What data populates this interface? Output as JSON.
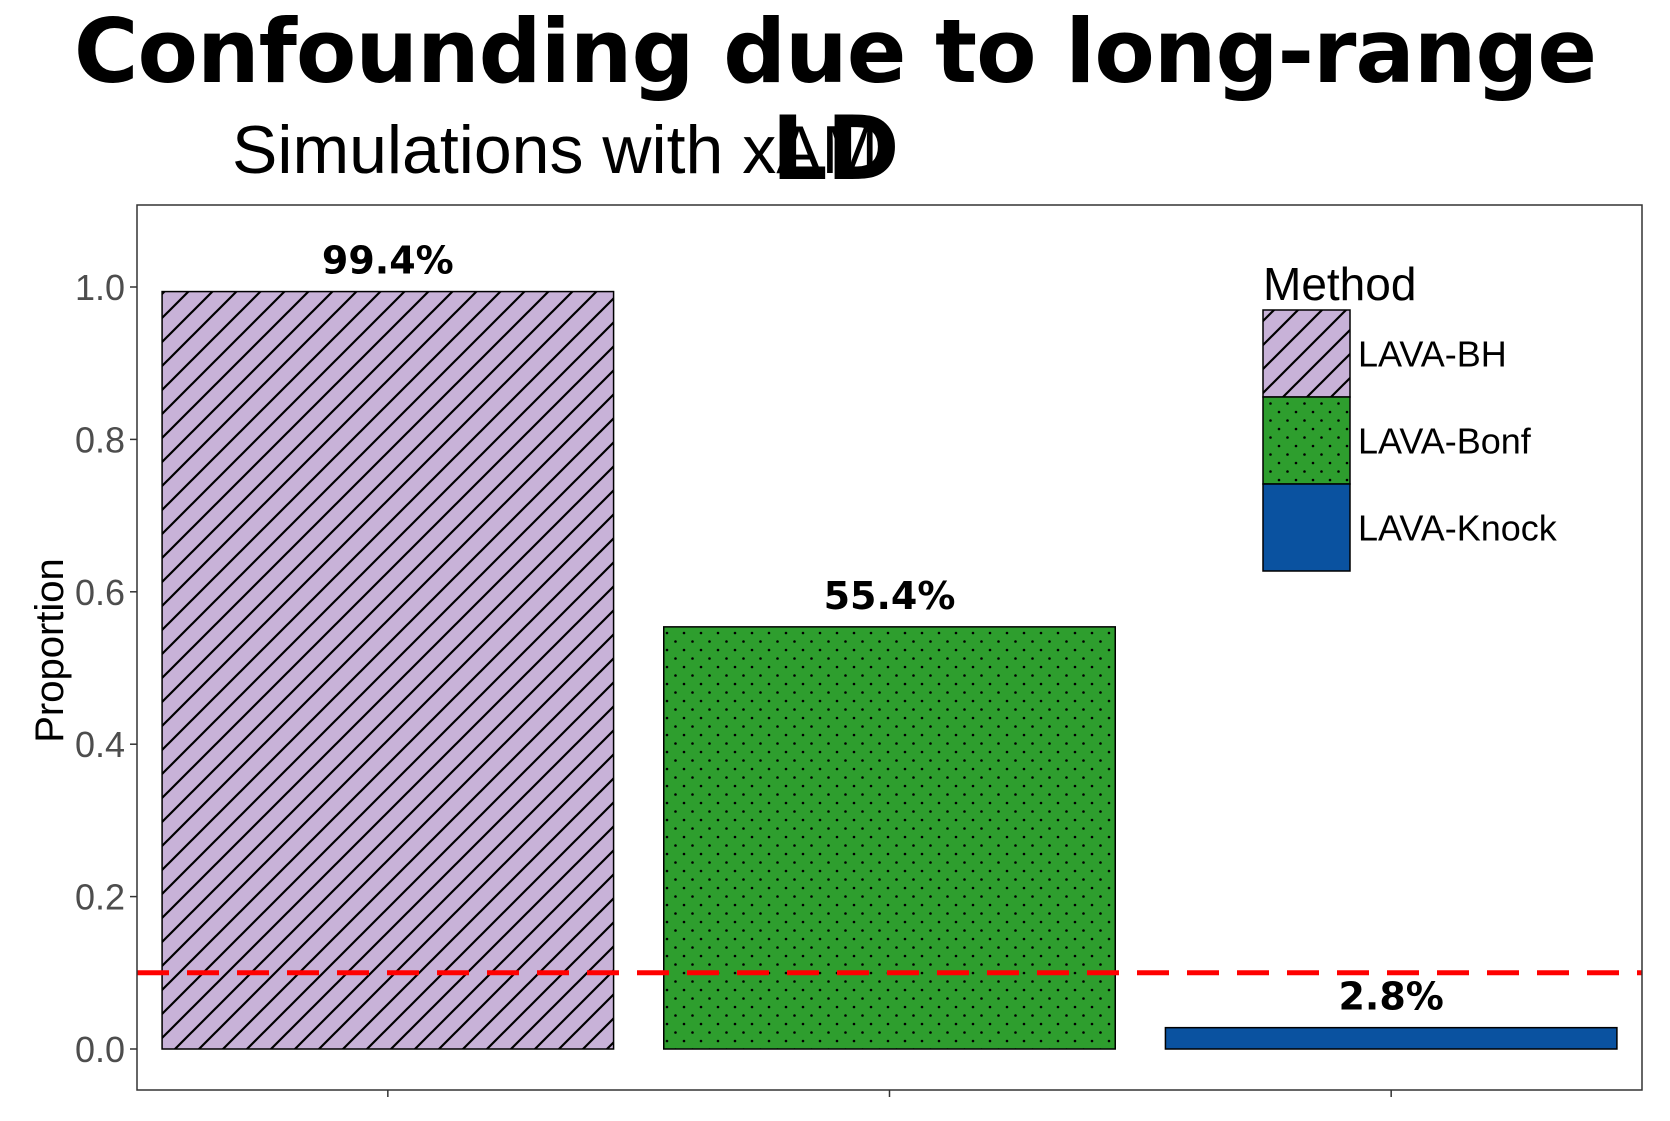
{
  "slide": {
    "title": "Confounding due to long-range LD",
    "subtitle": "Simulations with xAM"
  },
  "chart_data": {
    "type": "bar",
    "categories": [
      "LAVA-BH",
      "LAVA-Bonf",
      "LAVA-Knock"
    ],
    "values": [
      0.994,
      0.554,
      0.028
    ],
    "data_labels": [
      "99.4%",
      "55.4%",
      "2.8%"
    ],
    "ylabel": "Proportion",
    "xlabel": "",
    "ylim": [
      -0.05,
      1.1
    ],
    "yticks": [
      0.0,
      0.2,
      0.4,
      0.6,
      0.8,
      1.0
    ],
    "ytick_labels": [
      "0.0",
      "0.2",
      "0.4",
      "0.6",
      "0.8",
      "1.0"
    ],
    "reference_line": {
      "y": 0.1,
      "style": "dashed",
      "color": "#ff0000"
    },
    "legend": {
      "title": "Method",
      "placement": "top-right",
      "entries": [
        "LAVA-BH",
        "LAVA-Bonf",
        "LAVA-Knock"
      ]
    },
    "colors": [
      "#c8b2d8",
      "#2e9e2e",
      "#0a52a0"
    ],
    "patterns": [
      "diagonal-stripes",
      "dots",
      "solid"
    ],
    "grid": false
  }
}
